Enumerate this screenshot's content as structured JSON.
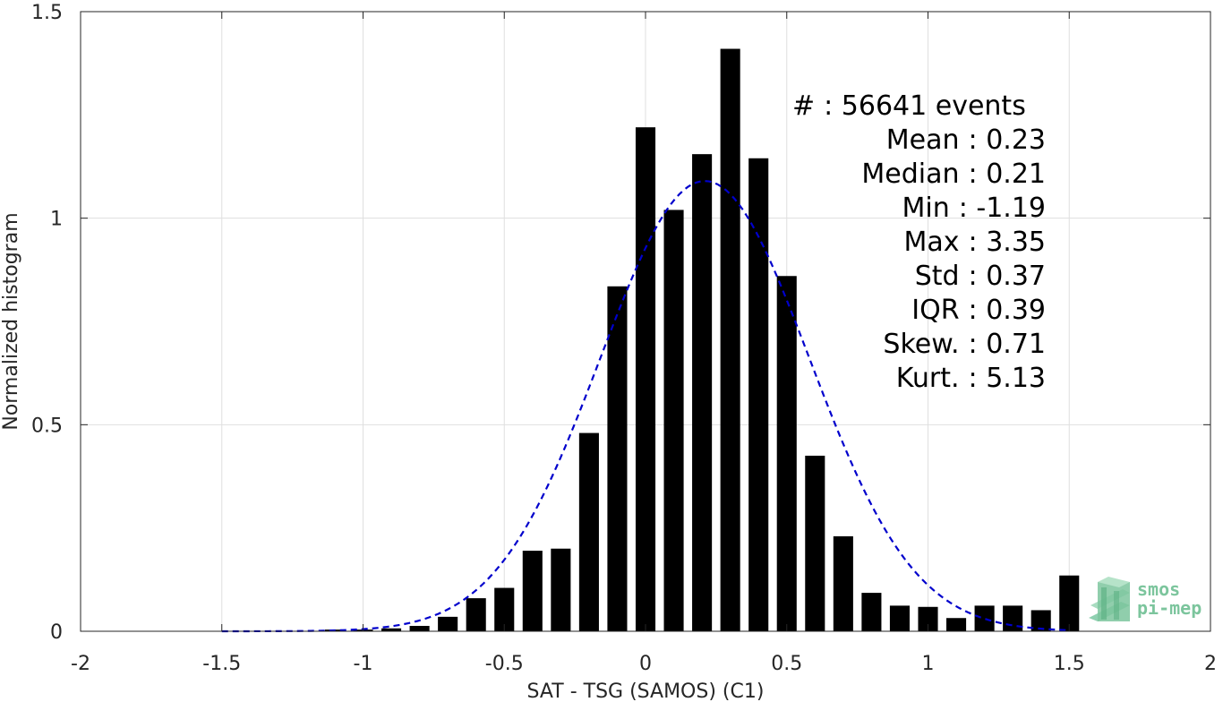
{
  "chart_data": {
    "type": "bar",
    "xlabel": "SAT - TSG (SAMOS) (C1)",
    "ylabel": "Normalized histogram",
    "xlim": [
      -2,
      2
    ],
    "ylim": [
      0,
      1.5
    ],
    "grid": true,
    "xticks": [
      "-2",
      "-1.5",
      "-1",
      "-0.5",
      "0",
      "0.5",
      "1",
      "1.5",
      "2"
    ],
    "xtick_values": [
      -2,
      -1.5,
      -1,
      -0.5,
      0,
      0.5,
      1,
      1.5,
      2
    ],
    "yticks": [
      "0",
      "0.5",
      "1",
      "1.5"
    ],
    "ytick_values": [
      0,
      0.5,
      1,
      1.5
    ],
    "bar_width": 0.07,
    "bars": {
      "x": [
        -1.2,
        -1.1,
        -1.0,
        -0.9,
        -0.8,
        -0.7,
        -0.6,
        -0.5,
        -0.4,
        -0.3,
        -0.2,
        -0.1,
        0.0,
        0.1,
        0.2,
        0.3,
        0.4,
        0.5,
        0.6,
        0.7,
        0.8,
        0.9,
        1.0,
        1.1,
        1.2,
        1.3,
        1.4,
        1.5
      ],
      "values": [
        0.0,
        0.004,
        0.004,
        0.007,
        0.013,
        0.035,
        0.08,
        0.105,
        0.195,
        0.2,
        0.48,
        0.835,
        1.22,
        1.02,
        1.155,
        1.41,
        1.145,
        0.86,
        0.425,
        0.23,
        0.093,
        0.062,
        0.059,
        0.032,
        0.062,
        0.062,
        0.051,
        0.135
      ],
      "color": "#000000"
    },
    "fit_curve": {
      "style": "dashed",
      "color": "#0000cc",
      "x_start": -1.5,
      "x_end": 1.5,
      "mean": 0.21,
      "sigma": 0.37,
      "peak": 1.09
    },
    "annotation": {
      "lines": [
        {
          "label": "#",
          "sep": ":",
          "value": "56641 events"
        },
        {
          "label": "Mean",
          "sep": ":",
          "value": "0.23"
        },
        {
          "label": "Median",
          "sep": ":",
          "value": "0.21"
        },
        {
          "label": "Min",
          "sep": ":",
          "value": "-1.19"
        },
        {
          "label": "Max",
          "sep": ":",
          "value": "3.35"
        },
        {
          "label": "Std",
          "sep": ":",
          "value": "0.37"
        },
        {
          "label": "IQR",
          "sep": ":",
          "value": "0.39"
        },
        {
          "label": "Skew.",
          "sep": ":",
          "value": "0.71"
        },
        {
          "label": "Kurt.",
          "sep": ":",
          "value": "5.13"
        }
      ]
    }
  },
  "logo": {
    "line1": "smos",
    "line2": "pi-mep"
  }
}
